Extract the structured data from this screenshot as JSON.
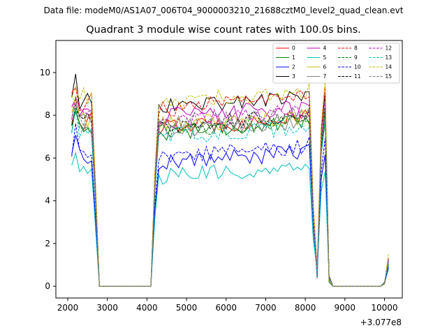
{
  "suptitle": "Data file: modeM0/AS1A07_006T04_9000003210_21688cztM0_level2_quad_clean.evt",
  "chart_data": {
    "type": "line",
    "title": "Quadrant 3 module wise count rates with 100.0s bins.",
    "xlabel": "",
    "ylabel": "",
    "x_offset_label": "+3.077e8",
    "xlim": [
      1700,
      10450
    ],
    "ylim": [
      -0.55,
      11.5
    ],
    "xticks": [
      2000,
      3000,
      4000,
      5000,
      6000,
      7000,
      8000,
      9000,
      10000
    ],
    "yticks": [
      0,
      2,
      4,
      6,
      8,
      10
    ],
    "grid": false,
    "legend_position": "top-right",
    "series": [
      {
        "name": "0",
        "color": "#ff0000",
        "dash": "solid",
        "base": 7.4,
        "tail": 1.1
      },
      {
        "name": "1",
        "color": "#008000",
        "dash": "solid",
        "base": 7.2,
        "tail": 1.0
      },
      {
        "name": "2",
        "color": "#0000ff",
        "dash": "solid",
        "base": 5.8,
        "tail": 0.9
      },
      {
        "name": "3",
        "color": "#000000",
        "dash": "solid",
        "base": 8.4,
        "tail": 1.3
      },
      {
        "name": "4",
        "color": "#bf00bf",
        "dash": "solid",
        "base": 7.9,
        "tail": 1.2
      },
      {
        "name": "5",
        "color": "#00bfbf",
        "dash": "solid",
        "base": 5.1,
        "tail": 0.8
      },
      {
        "name": "6",
        "color": "#bfbf00",
        "dash": "solid",
        "base": 7.5,
        "tail": 1.1
      },
      {
        "name": "7",
        "color": "#808080",
        "dash": "solid",
        "base": 7.3,
        "tail": 1.1
      },
      {
        "name": "8",
        "color": "#ff0000",
        "dash": "dashed",
        "base": 8.3,
        "tail": 1.3
      },
      {
        "name": "9",
        "color": "#008000",
        "dash": "dashed",
        "base": 7.3,
        "tail": 1.1
      },
      {
        "name": "10",
        "color": "#0000ff",
        "dash": "dashed",
        "base": 6.1,
        "tail": 0.9
      },
      {
        "name": "11",
        "color": "#000000",
        "dash": "dashed",
        "base": 7.5,
        "tail": 1.1
      },
      {
        "name": "12",
        "color": "#bf00bf",
        "dash": "dashed",
        "base": 7.7,
        "tail": 1.2
      },
      {
        "name": "13",
        "color": "#00bfbf",
        "dash": "dashed",
        "base": 7.0,
        "tail": 1.1
      },
      {
        "name": "14",
        "color": "#bfbf00",
        "dash": "dashed",
        "base": 8.6,
        "tail": 1.5
      },
      {
        "name": "15",
        "color": "#808080",
        "dash": "dashed",
        "base": 7.6,
        "tail": 1.2
      }
    ]
  }
}
